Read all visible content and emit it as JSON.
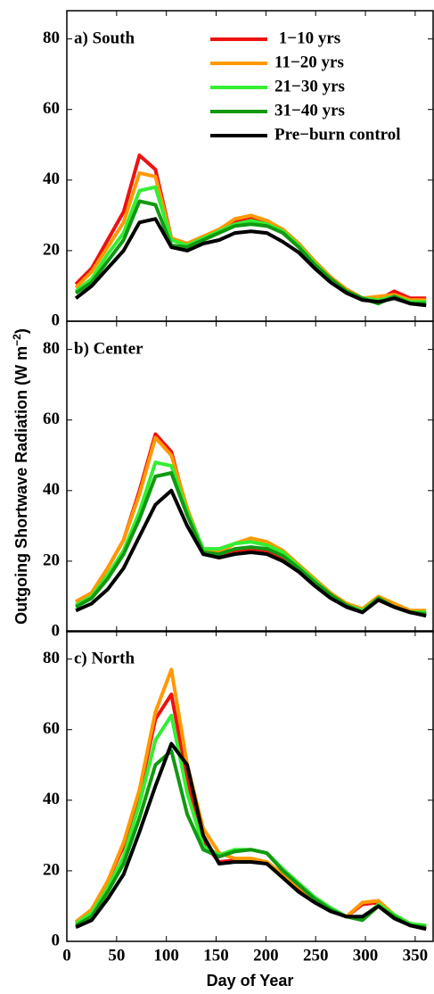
{
  "chart_data": [
    {
      "type": "line",
      "title": "a) South",
      "xlim": [
        0,
        368
      ],
      "ylim": [
        0,
        88
      ],
      "xticks": [
        0,
        50,
        100,
        150,
        200,
        250,
        300,
        350
      ],
      "yticks": [
        0,
        20,
        40,
        60,
        80
      ],
      "x": [
        9,
        25,
        41,
        57,
        73,
        89,
        105,
        121,
        137,
        153,
        169,
        185,
        201,
        217,
        233,
        249,
        265,
        281,
        297,
        313,
        329,
        345,
        361
      ],
      "series": [
        {
          "name": " 1−10 yrs",
          "color": "#ee1111",
          "values": [
            10.5,
            15,
            23,
            31,
            47,
            43,
            23.5,
            22,
            24,
            26,
            28,
            29,
            28,
            26,
            22,
            17,
            12.5,
            9,
            6.5,
            6,
            8.5,
            6.5,
            6.5
          ]
        },
        {
          "name": "11−20 yrs",
          "color": "#ff9900",
          "values": [
            9.5,
            14,
            21,
            28,
            42,
            41,
            23.5,
            22,
            24,
            26,
            29,
            30,
            28.5,
            26,
            22,
            17,
            12.5,
            9,
            6.5,
            7,
            7.5,
            6,
            6
          ]
        },
        {
          "name": "21−30 yrs",
          "color": "#33ee33",
          "values": [
            8.5,
            12,
            19,
            25,
            37,
            38,
            23,
            21.5,
            23.5,
            25.5,
            27.5,
            28.5,
            27.5,
            25.5,
            21.5,
            16.5,
            12,
            8.5,
            6.5,
            6,
            7,
            5.5,
            5.5
          ]
        },
        {
          "name": "31−40 yrs",
          "color": "#119911",
          "values": [
            8,
            11,
            17,
            23,
            34,
            33,
            21.5,
            21,
            23,
            25,
            27,
            27.5,
            27,
            25,
            21,
            16,
            12,
            8.5,
            6.5,
            5,
            7,
            5,
            5
          ]
        },
        {
          "name": "Pre−burn control",
          "color": "#000000",
          "values": [
            6.5,
            10,
            15,
            20,
            28,
            29,
            21,
            20,
            22,
            23,
            25,
            25.5,
            25,
            22.5,
            19.5,
            15,
            11,
            8,
            6,
            5.5,
            6.5,
            5,
            4.5
          ]
        }
      ]
    },
    {
      "type": "line",
      "title": "b) Center",
      "ylabel": "Outgoing Shortwave Radiation (W m",
      "ylabel_sup": "−2",
      "ylabel_end": ")",
      "xlim": [
        0,
        368
      ],
      "ylim": [
        0,
        88
      ],
      "xticks": [
        0,
        50,
        100,
        150,
        200,
        250,
        300,
        350
      ],
      "yticks": [
        0,
        20,
        40,
        60,
        80
      ],
      "x": [
        9,
        25,
        41,
        57,
        73,
        89,
        105,
        121,
        137,
        153,
        169,
        185,
        201,
        217,
        233,
        249,
        265,
        281,
        297,
        313,
        329,
        345,
        361
      ],
      "series": [
        {
          "color": "#ee1111",
          "values": [
            8.5,
            11,
            18,
            26,
            40,
            56,
            51,
            34,
            22,
            21.5,
            23,
            23.5,
            23,
            21,
            18,
            14,
            10.5,
            7.5,
            6,
            9,
            7,
            5.5,
            5
          ]
        },
        {
          "color": "#ff9900",
          "values": [
            8.5,
            11,
            18,
            26,
            39,
            55,
            50,
            35,
            23,
            22.5,
            25,
            26.5,
            25.5,
            23,
            19,
            15,
            11,
            8,
            6.5,
            10,
            8,
            6,
            6
          ]
        },
        {
          "color": "#33ee33",
          "values": [
            7.5,
            10,
            16,
            23,
            34,
            48,
            47,
            34,
            23.5,
            23.5,
            25,
            25.5,
            24.5,
            22.5,
            18.5,
            14.5,
            10.5,
            7.5,
            6,
            9.5,
            7,
            5.5,
            5.5
          ]
        },
        {
          "color": "#119911",
          "values": [
            7,
            9.5,
            15,
            22,
            32,
            44,
            45,
            33,
            22.5,
            22,
            23.5,
            24,
            23.5,
            21.5,
            18,
            14,
            10.5,
            7.5,
            5.5,
            9.5,
            7,
            5.5,
            5
          ]
        },
        {
          "color": "#000000",
          "values": [
            6,
            8,
            12,
            18,
            27,
            36,
            40,
            30,
            22,
            21,
            22,
            22.5,
            22,
            20,
            17,
            13,
            9.5,
            7,
            5.5,
            9,
            7,
            5.5,
            4.5
          ]
        }
      ]
    },
    {
      "type": "line",
      "title": "c) North",
      "xlabel": "Day of Year",
      "xlim": [
        0,
        368
      ],
      "ylim": [
        0,
        88
      ],
      "xticks": [
        0,
        50,
        100,
        150,
        200,
        250,
        300,
        350
      ],
      "yticks": [
        0,
        20,
        40,
        60,
        80
      ],
      "x": [
        9,
        25,
        41,
        57,
        73,
        89,
        105,
        121,
        137,
        153,
        169,
        185,
        201,
        217,
        233,
        249,
        265,
        281,
        297,
        313,
        329,
        345,
        361
      ],
      "series": [
        {
          "color": "#ee1111",
          "values": [
            5.5,
            9,
            17,
            27,
            42,
            63,
            70,
            46,
            28,
            22.5,
            23,
            23,
            22,
            18.5,
            15,
            11.5,
            9,
            7,
            10.5,
            11,
            7,
            4.5,
            3.5
          ]
        },
        {
          "color": "#ff9900",
          "values": [
            5.5,
            9,
            17,
            28,
            43,
            65,
            77,
            50,
            32,
            25,
            23.5,
            23.5,
            22.5,
            19,
            15.5,
            12,
            9,
            7,
            11,
            11.5,
            7.5,
            5,
            4
          ]
        },
        {
          "color": "#33ee33",
          "values": [
            5,
            8,
            15,
            24,
            39,
            57,
            64,
            42,
            27,
            24.5,
            26,
            26,
            25,
            20.5,
            16.5,
            12.5,
            9.5,
            7,
            6.5,
            10.5,
            7.5,
            5,
            4.5
          ]
        },
        {
          "color": "#119911",
          "values": [
            4.5,
            7,
            14,
            22,
            35,
            50,
            54,
            36,
            26,
            24,
            25.5,
            26,
            25,
            20,
            16,
            12,
            9,
            7,
            6,
            10,
            7,
            4.5,
            4
          ]
        },
        {
          "color": "#000000",
          "values": [
            4,
            6,
            12,
            19,
            31,
            44,
            56,
            50,
            30,
            22,
            22.5,
            22.5,
            22,
            18,
            14,
            11,
            8.5,
            7,
            7,
            10,
            6.5,
            4.5,
            3.5
          ]
        }
      ]
    }
  ]
}
